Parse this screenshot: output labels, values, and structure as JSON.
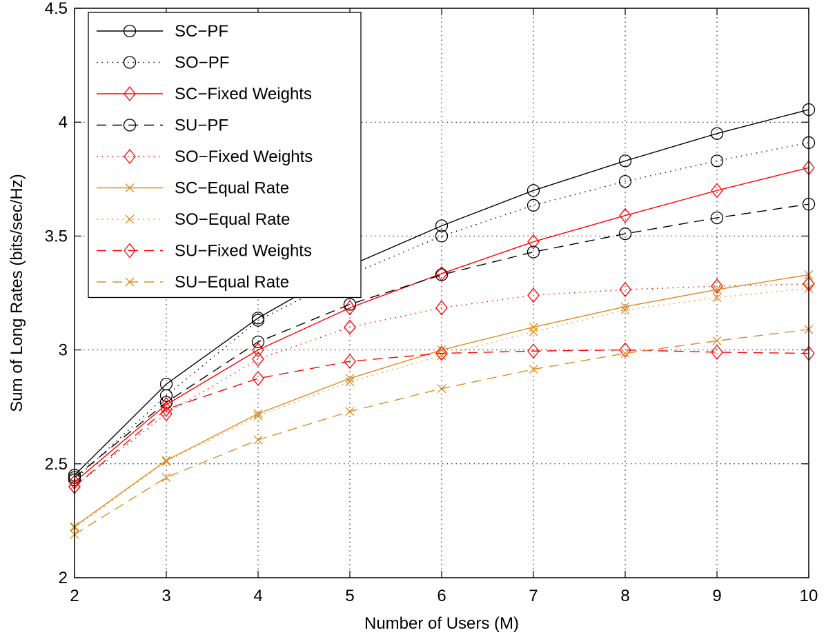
{
  "chart_data": {
    "type": "line",
    "xlabel": "Number of Users (M)",
    "ylabel": "Sum of Long Rates (bits/sec/Hz)",
    "xlim": [
      2,
      10
    ],
    "ylim": [
      2,
      4.5
    ],
    "xticks": [
      2,
      3,
      4,
      5,
      6,
      7,
      8,
      9,
      10
    ],
    "yticks": [
      2,
      2.5,
      3,
      3.5,
      4,
      4.5
    ],
    "ytick_labels": [
      "2",
      "2.5",
      "3",
      "3.5",
      "4",
      "4.5"
    ],
    "grid": true,
    "legend_position": "top-left",
    "x": [
      2,
      3,
      4,
      5,
      6,
      7,
      8,
      9,
      10
    ],
    "series": [
      {
        "name": "SC−PF",
        "color": "#000000",
        "line": "solid",
        "marker": "circle",
        "values": [
          2.45,
          2.85,
          3.14,
          3.37,
          3.545,
          3.7,
          3.83,
          3.95,
          4.055
        ]
      },
      {
        "name": "SO−PF",
        "color": "#000000",
        "line": "dotted",
        "marker": "circle",
        "values": [
          2.43,
          2.8,
          3.13,
          3.33,
          3.5,
          3.635,
          3.74,
          3.83,
          3.91
        ]
      },
      {
        "name": "SC−Fixed Weights",
        "color": "#ff0000",
        "line": "solid",
        "marker": "diamond",
        "values": [
          2.42,
          2.76,
          3.0,
          3.185,
          3.335,
          3.475,
          3.59,
          3.7,
          3.8
        ]
      },
      {
        "name": "SU−PF",
        "color": "#000000",
        "line": "dashed",
        "marker": "circle",
        "values": [
          2.44,
          2.77,
          3.035,
          3.2,
          3.33,
          3.43,
          3.51,
          3.58,
          3.64
        ]
      },
      {
        "name": "SO−Fixed Weights",
        "color": "#ff0000",
        "line": "dotted",
        "marker": "diamond",
        "values": [
          2.4,
          2.72,
          2.96,
          3.1,
          3.185,
          3.24,
          3.265,
          3.28,
          3.29
        ]
      },
      {
        "name": "SC−Equal Rate",
        "color": "#e08a1e",
        "line": "solid",
        "marker": "x",
        "values": [
          2.225,
          2.515,
          2.72,
          2.875,
          3.0,
          3.1,
          3.19,
          3.265,
          3.33
        ]
      },
      {
        "name": "SO−Equal Rate",
        "color": "#e08a1e",
        "line": "dotted",
        "marker": "x",
        "values": [
          2.22,
          2.51,
          2.71,
          2.86,
          2.975,
          3.08,
          3.175,
          3.23,
          3.27
        ]
      },
      {
        "name": "SU−Fixed Weights",
        "color": "#ff0000",
        "line": "dashed",
        "marker": "diamond",
        "values": [
          2.4,
          2.74,
          2.875,
          2.95,
          2.985,
          2.995,
          3.0,
          2.99,
          2.985
        ]
      },
      {
        "name": "SU−Equal Rate",
        "color": "#e08a1e",
        "line": "dashed",
        "marker": "x",
        "values": [
          2.19,
          2.44,
          2.605,
          2.73,
          2.83,
          2.915,
          2.985,
          3.04,
          3.09
        ]
      }
    ]
  }
}
